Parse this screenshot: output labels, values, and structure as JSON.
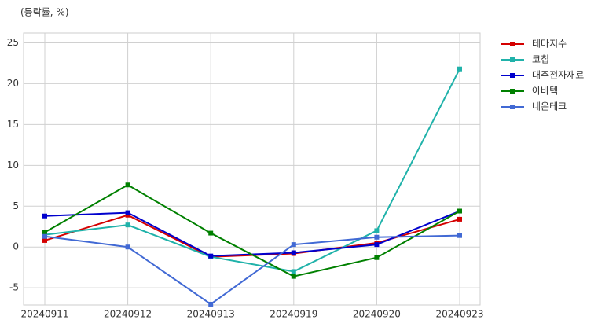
{
  "chart_data": {
    "type": "line",
    "y_label": "(등락률, %)",
    "categories": [
      "20240911",
      "20240912",
      "20240913",
      "20240919",
      "20240920",
      "20240923"
    ],
    "series": [
      {
        "name": "테마지수",
        "color": "#d40000",
        "values": [
          0.8,
          3.9,
          -1.2,
          -0.8,
          0.5,
          3.4
        ]
      },
      {
        "name": "코칩",
        "color": "#20b2aa",
        "values": [
          1.5,
          2.7,
          -1.2,
          -3.0,
          2.0,
          21.8
        ]
      },
      {
        "name": "대주전자재료",
        "color": "#0000cd",
        "values": [
          3.8,
          4.2,
          -1.1,
          -0.7,
          0.3,
          4.4
        ]
      },
      {
        "name": "아바텍",
        "color": "#008000",
        "values": [
          1.8,
          7.6,
          1.7,
          -3.6,
          -1.3,
          4.4
        ]
      },
      {
        "name": "네온테크",
        "color": "#4169d4",
        "values": [
          1.3,
          0.0,
          -7.0,
          0.3,
          1.2,
          1.4
        ]
      }
    ],
    "ylim": [
      -7.1,
      26.2
    ],
    "yticks": [
      -5,
      0,
      5,
      10,
      15,
      20,
      25
    ],
    "grid": true,
    "legend": "outside-right"
  }
}
